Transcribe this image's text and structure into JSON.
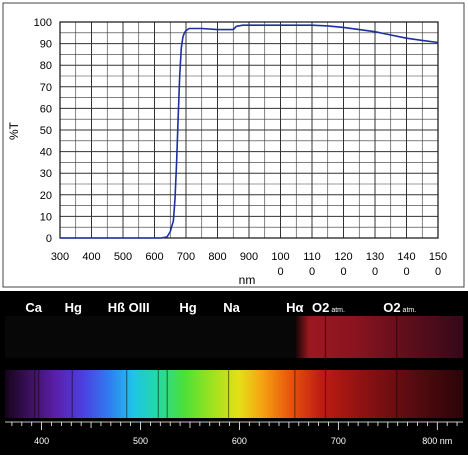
{
  "chart_data": {
    "type": "line",
    "title": "",
    "xlabel": "nm",
    "ylabel": "%T",
    "xlim": [
      300,
      1500
    ],
    "ylim": [
      0,
      100
    ],
    "grid": true,
    "legend": "none",
    "x_ticks": [
      "300",
      "400",
      "500",
      "600",
      "700",
      "800",
      "900",
      "1000",
      "1100",
      "1200",
      "1300",
      "1400",
      "1500"
    ],
    "y_ticks": [
      "0",
      "10",
      "20",
      "30",
      "40",
      "50",
      "60",
      "70",
      "80",
      "90",
      "100"
    ],
    "line_color": "#1f2fa0",
    "series": [
      {
        "x": [
          300,
          620,
          640,
          650,
          660,
          665,
          670,
          675,
          680,
          685,
          690,
          695,
          700,
          710,
          720,
          750,
          800,
          850,
          860,
          880,
          900,
          1000,
          1100,
          1150,
          1200,
          1250,
          1300,
          1350,
          1400,
          1450,
          1500
        ],
        "y": [
          0,
          0,
          0.5,
          3,
          8,
          18,
          35,
          55,
          75,
          88,
          93,
          95,
          96,
          97,
          97,
          97,
          96.5,
          96.5,
          98,
          98.5,
          98.5,
          98.5,
          98.5,
          98.2,
          97.5,
          96.5,
          95.5,
          94,
          92.5,
          91.5,
          90.5
        ]
      }
    ]
  },
  "spectrum": {
    "emission_labels": [
      {
        "text": "Ca",
        "nm": 392
      },
      {
        "text": "Hg",
        "nm": 432
      },
      {
        "text": "Hß OIII",
        "nm": 488
      },
      {
        "text": "Hg",
        "nm": 548
      },
      {
        "text": "Na",
        "nm": 592
      },
      {
        "text": "Hα",
        "nm": 656
      },
      {
        "text": "O2",
        "sub": "atm.",
        "nm": 690
      },
      {
        "text": "O2",
        "sub": "atm.",
        "nm": 762
      }
    ],
    "scale_labels": [
      {
        "text": "400",
        "nm": 400
      },
      {
        "text": "500",
        "nm": 500
      },
      {
        "text": "600",
        "nm": 600
      },
      {
        "text": "700",
        "nm": 700
      },
      {
        "text": "800 nm",
        "nm": 800
      }
    ],
    "scale_range": [
      363,
      826
    ]
  }
}
